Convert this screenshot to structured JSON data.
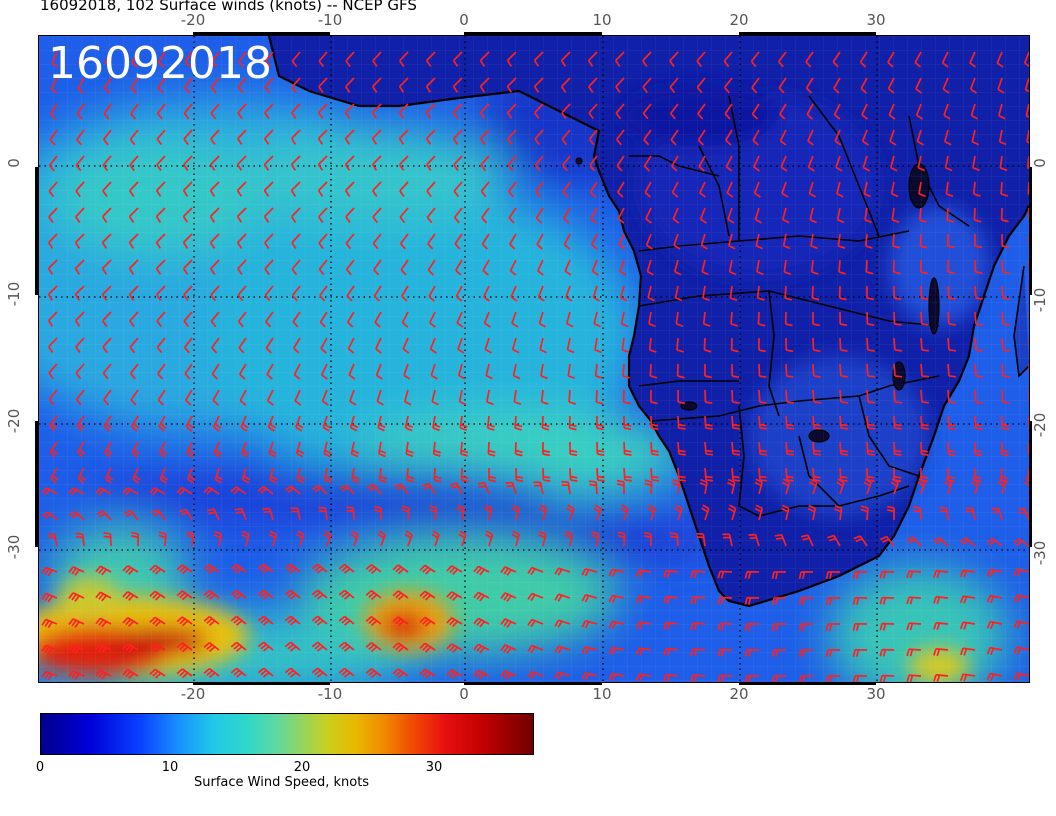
{
  "header": {
    "title": "16092018, 102 Surface winds (knots) -- NCEP GFS",
    "stamp": "16092018"
  },
  "map": {
    "lon_range": [
      -30.5,
      41
    ],
    "lat_range": [
      -40.5,
      10
    ],
    "grid": "dotted",
    "lon_ticks": [
      "-20",
      "-10",
      "0",
      "10",
      "20",
      "30"
    ],
    "lat_ticks": [
      "0",
      "-10",
      "-20",
      "-30"
    ],
    "wind_barb_color": "#ff2020",
    "coastline_color": "#000000"
  },
  "colorbar": {
    "ticks": [
      "0",
      "10",
      "20",
      "30"
    ],
    "label": "Surface Wind Speed, knots",
    "range": [
      0,
      37
    ],
    "colors": [
      "#00008c",
      "#0000d8",
      "#1890ff",
      "#2ed8c8",
      "#c8d020",
      "#f08800",
      "#e81010",
      "#700000"
    ]
  },
  "chart_data": {
    "type": "heatmap",
    "title": "16092018, 102 Surface winds (knots) -- NCEP GFS",
    "variable": "Surface Wind Speed, knots",
    "units": "knots",
    "value_range": [
      0,
      37
    ],
    "x_ticks": [
      -20,
      -10,
      0,
      10,
      20,
      30
    ],
    "y_ticks": [
      0,
      -10,
      -20,
      -30
    ],
    "x_range": [
      -30.5,
      41
    ],
    "y_range": [
      -40.5,
      10
    ]
  }
}
